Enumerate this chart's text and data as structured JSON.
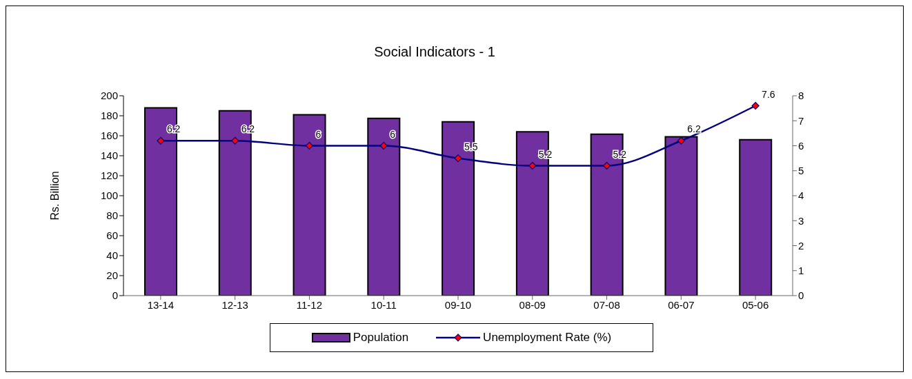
{
  "chart_data": {
    "type": "bar",
    "title": "Social Indicators - 1",
    "ylabel": "Rs. Billion",
    "categories": [
      "13-14",
      "12-13",
      "11-12",
      "10-11",
      "09-10",
      "08-09",
      "07-08",
      "06-07",
      "05-06"
    ],
    "series": [
      {
        "name": "Population",
        "color": "#7030a0",
        "values": [
          188,
          185,
          181,
          177.5,
          174,
          164,
          161.5,
          159,
          156
        ]
      },
      {
        "name": "Unemployment Rate (%)",
        "type": "line",
        "axis": "y2",
        "color": "#000080",
        "marker": "diamond",
        "data_labels": true,
        "values": [
          6.2,
          6.2,
          6,
          6,
          5.5,
          5.2,
          5.2,
          6.2,
          7.6
        ]
      }
    ],
    "ylim": [
      0,
      200
    ],
    "yticks": [
      0,
      20,
      40,
      60,
      80,
      100,
      120,
      140,
      160,
      180,
      200
    ],
    "y2lim": [
      0,
      8
    ],
    "y2ticks": [
      0,
      1,
      2,
      3,
      4,
      5,
      6,
      7,
      8
    ],
    "grid": false,
    "legend": "bottom"
  }
}
